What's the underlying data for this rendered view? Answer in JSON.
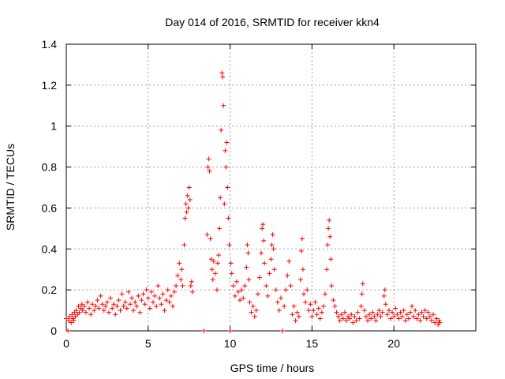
{
  "chart_data": {
    "type": "scatter",
    "title": "Day 014 of 2016, SRMTID for receiver kkn4",
    "xlabel": "GPS time / hours",
    "ylabel": "SRMTID / TECUs",
    "xlim": [
      0,
      25
    ],
    "ylim": [
      0,
      1.4
    ],
    "xticks": [
      0,
      5,
      10,
      15,
      20
    ],
    "xtick_labels": [
      "0",
      "5",
      "10",
      "15",
      "20"
    ],
    "yticks": [
      0,
      0.2,
      0.4,
      0.6,
      0.8,
      1,
      1.2,
      1.4
    ],
    "ytick_labels": [
      "0",
      "0.2",
      "0.4",
      "0.6",
      "0.8",
      "1",
      "1.2",
      "1.4"
    ],
    "grid": true,
    "legend": "none",
    "marker": "plus",
    "series": [
      {
        "name": "kkn4",
        "color": "#ff0000",
        "points": [
          [
            0.0,
            0.06
          ],
          [
            0.1,
            0.0
          ],
          [
            0.15,
            0.05
          ],
          [
            0.2,
            0.07
          ],
          [
            0.3,
            0.04
          ],
          [
            0.35,
            0.08
          ],
          [
            0.4,
            0.06
          ],
          [
            0.45,
            0.05
          ],
          [
            0.5,
            0.09
          ],
          [
            0.55,
            0.07
          ],
          [
            0.6,
            0.1
          ],
          [
            0.7,
            0.08
          ],
          [
            0.75,
            0.12
          ],
          [
            0.8,
            0.09
          ],
          [
            0.9,
            0.11
          ],
          [
            0.95,
            0.13
          ],
          [
            1.0,
            0.1
          ],
          [
            1.1,
            0.12
          ],
          [
            1.2,
            0.09
          ],
          [
            1.3,
            0.14
          ],
          [
            1.4,
            0.11
          ],
          [
            1.5,
            0.08
          ],
          [
            1.6,
            0.13
          ],
          [
            1.7,
            0.1
          ],
          [
            1.8,
            0.12
          ],
          [
            1.9,
            0.15
          ],
          [
            2.0,
            0.11
          ],
          [
            2.1,
            0.17
          ],
          [
            2.2,
            0.13
          ],
          [
            2.3,
            0.1
          ],
          [
            2.4,
            0.12
          ],
          [
            2.5,
            0.14
          ],
          [
            2.6,
            0.09
          ],
          [
            2.7,
            0.16
          ],
          [
            2.8,
            0.11
          ],
          [
            2.9,
            0.13
          ],
          [
            3.0,
            0.08
          ],
          [
            3.1,
            0.12
          ],
          [
            3.2,
            0.15
          ],
          [
            3.3,
            0.1
          ],
          [
            3.4,
            0.18
          ],
          [
            3.5,
            0.12
          ],
          [
            3.6,
            0.14
          ],
          [
            3.7,
            0.11
          ],
          [
            3.8,
            0.19
          ],
          [
            3.9,
            0.13
          ],
          [
            4.0,
            0.16
          ],
          [
            4.1,
            0.1
          ],
          [
            4.2,
            0.14
          ],
          [
            4.3,
            0.12
          ],
          [
            4.4,
            0.17
          ],
          [
            4.5,
            0.09
          ],
          [
            4.6,
            0.15
          ],
          [
            4.7,
            0.18
          ],
          [
            4.8,
            0.13
          ],
          [
            4.9,
            0.2
          ],
          [
            5.0,
            0.16
          ],
          [
            5.1,
            0.11
          ],
          [
            5.2,
            0.19
          ],
          [
            5.3,
            0.14
          ],
          [
            5.4,
            0.17
          ],
          [
            5.5,
            0.12
          ],
          [
            5.6,
            0.22
          ],
          [
            5.7,
            0.16
          ],
          [
            5.8,
            0.13
          ],
          [
            5.9,
            0.18
          ],
          [
            6.0,
            0.1
          ],
          [
            6.1,
            0.15
          ],
          [
            6.2,
            0.2
          ],
          [
            6.3,
            0.14
          ],
          [
            6.4,
            0.17
          ],
          [
            6.5,
            0.12
          ],
          [
            6.6,
            0.19
          ],
          [
            6.7,
            0.22
          ],
          [
            6.8,
            0.27
          ],
          [
            6.9,
            0.33
          ],
          [
            7.0,
            0.25
          ],
          [
            7.05,
            0.3
          ],
          [
            7.1,
            0.22
          ],
          [
            7.2,
            0.42
          ],
          [
            7.25,
            0.55
          ],
          [
            7.3,
            0.62
          ],
          [
            7.35,
            0.58
          ],
          [
            7.4,
            0.66
          ],
          [
            7.45,
            0.6
          ],
          [
            7.5,
            0.7
          ],
          [
            7.55,
            0.64
          ],
          [
            7.6,
            0.22
          ],
          [
            7.65,
            0.24
          ],
          [
            7.7,
            0.19
          ],
          [
            8.4,
            0.0
          ],
          [
            8.6,
            0.47
          ],
          [
            8.65,
            0.8
          ],
          [
            8.7,
            0.84
          ],
          [
            8.75,
            0.78
          ],
          [
            8.8,
            0.45
          ],
          [
            8.85,
            0.35
          ],
          [
            8.9,
            0.3
          ],
          [
            8.95,
            0.25
          ],
          [
            9.0,
            0.34
          ],
          [
            9.1,
            0.28
          ],
          [
            9.2,
            0.2
          ],
          [
            9.25,
            0.33
          ],
          [
            9.3,
            0.37
          ],
          [
            9.35,
            0.5
          ],
          [
            9.4,
            0.65
          ],
          [
            9.45,
            0.98
          ],
          [
            9.5,
            1.26
          ],
          [
            9.55,
            1.24
          ],
          [
            9.6,
            1.1
          ],
          [
            9.65,
            0.62
          ],
          [
            9.7,
            0.88
          ],
          [
            9.75,
            0.8
          ],
          [
            9.8,
            0.92
          ],
          [
            9.85,
            0.7
          ],
          [
            9.9,
            0.55
          ],
          [
            9.95,
            0.42
          ],
          [
            10.0,
            0.0
          ],
          [
            10.05,
            0.33
          ],
          [
            10.1,
            0.28
          ],
          [
            10.2,
            0.22
          ],
          [
            10.3,
            0.17
          ],
          [
            10.4,
            0.24
          ],
          [
            10.5,
            0.19
          ],
          [
            10.6,
            0.15
          ],
          [
            10.7,
            0.2
          ],
          [
            10.8,
            0.16
          ],
          [
            10.9,
            0.22
          ],
          [
            11.0,
            0.31
          ],
          [
            11.05,
            0.42
          ],
          [
            11.1,
            0.38
          ],
          [
            11.15,
            0.25
          ],
          [
            11.2,
            0.14
          ],
          [
            11.3,
            0.09
          ],
          [
            11.4,
            0.12
          ],
          [
            11.5,
            0.07
          ],
          [
            11.6,
            0.1
          ],
          [
            11.7,
            0.18
          ],
          [
            11.8,
            0.26
          ],
          [
            11.9,
            0.38
          ],
          [
            11.95,
            0.5
          ],
          [
            12.0,
            0.52
          ],
          [
            12.05,
            0.44
          ],
          [
            12.1,
            0.33
          ],
          [
            12.2,
            0.22
          ],
          [
            12.3,
            0.17
          ],
          [
            12.4,
            0.28
          ],
          [
            12.5,
            0.35
          ],
          [
            12.55,
            0.42
          ],
          [
            12.6,
            0.47
          ],
          [
            12.65,
            0.4
          ],
          [
            12.7,
            0.3
          ],
          [
            12.8,
            0.2
          ],
          [
            12.9,
            0.14
          ],
          [
            13.0,
            0.1
          ],
          [
            13.1,
            0.16
          ],
          [
            13.2,
            0.0
          ],
          [
            13.3,
            0.12
          ],
          [
            13.4,
            0.2
          ],
          [
            13.5,
            0.27
          ],
          [
            13.6,
            0.34
          ],
          [
            13.7,
            0.22
          ],
          [
            13.8,
            0.08
          ],
          [
            13.9,
            0.12
          ],
          [
            14.0,
            0.05
          ],
          [
            14.1,
            0.09
          ],
          [
            14.2,
            0.07
          ],
          [
            14.3,
            0.25
          ],
          [
            14.35,
            0.39
          ],
          [
            14.4,
            0.45
          ],
          [
            14.45,
            0.3
          ],
          [
            14.5,
            0.18
          ],
          [
            14.6,
            0.14
          ],
          [
            14.7,
            0.2
          ],
          [
            14.8,
            0.1
          ],
          [
            14.9,
            0.13
          ],
          [
            15.0,
            0.07
          ],
          [
            15.1,
            0.1
          ],
          [
            15.2,
            0.14
          ],
          [
            15.3,
            0.08
          ],
          [
            15.4,
            0.11
          ],
          [
            15.5,
            0.06
          ],
          [
            15.6,
            0.09
          ],
          [
            15.7,
            0.12
          ],
          [
            15.8,
            0.18
          ],
          [
            15.9,
            0.3
          ],
          [
            15.95,
            0.42
          ],
          [
            16.0,
            0.5
          ],
          [
            16.05,
            0.54
          ],
          [
            16.1,
            0.46
          ],
          [
            16.15,
            0.35
          ],
          [
            16.2,
            0.22
          ],
          [
            16.3,
            0.15
          ],
          [
            16.4,
            0.12
          ],
          [
            16.5,
            0.09
          ],
          [
            16.6,
            0.07
          ],
          [
            16.7,
            0.05
          ],
          [
            16.8,
            0.08
          ],
          [
            16.9,
            0.06
          ],
          [
            17.0,
            0.09
          ],
          [
            17.1,
            0.05
          ],
          [
            17.2,
            0.07
          ],
          [
            17.3,
            0.06
          ],
          [
            17.4,
            0.08
          ],
          [
            17.5,
            0.04
          ],
          [
            17.6,
            0.07
          ],
          [
            17.7,
            0.05
          ],
          [
            17.8,
            0.09
          ],
          [
            17.9,
            0.06
          ],
          [
            18.0,
            0.12
          ],
          [
            18.05,
            0.18
          ],
          [
            18.1,
            0.23
          ],
          [
            18.2,
            0.1
          ],
          [
            18.3,
            0.07
          ],
          [
            18.4,
            0.05
          ],
          [
            18.5,
            0.08
          ],
          [
            18.6,
            0.06
          ],
          [
            18.7,
            0.09
          ],
          [
            18.8,
            0.07
          ],
          [
            18.9,
            0.05
          ],
          [
            19.0,
            0.08
          ],
          [
            19.1,
            0.1
          ],
          [
            19.2,
            0.07
          ],
          [
            19.3,
            0.09
          ],
          [
            19.4,
            0.17
          ],
          [
            19.45,
            0.2
          ],
          [
            19.5,
            0.13
          ],
          [
            19.6,
            0.08
          ],
          [
            19.7,
            0.1
          ],
          [
            19.8,
            0.06
          ],
          [
            19.9,
            0.09
          ],
          [
            20.0,
            0.07
          ],
          [
            20.1,
            0.11
          ],
          [
            20.2,
            0.08
          ],
          [
            20.3,
            0.06
          ],
          [
            20.4,
            0.09
          ],
          [
            20.5,
            0.07
          ],
          [
            20.6,
            0.1
          ],
          [
            20.7,
            0.05
          ],
          [
            20.8,
            0.08
          ],
          [
            20.9,
            0.06
          ],
          [
            21.0,
            0.09
          ],
          [
            21.1,
            0.12
          ],
          [
            21.2,
            0.07
          ],
          [
            21.3,
            0.1
          ],
          [
            21.4,
            0.06
          ],
          [
            21.5,
            0.08
          ],
          [
            21.6,
            0.05
          ],
          [
            21.7,
            0.09
          ],
          [
            21.8,
            0.07
          ],
          [
            21.9,
            0.1
          ],
          [
            22.0,
            0.06
          ],
          [
            22.1,
            0.09
          ],
          [
            22.2,
            0.07
          ],
          [
            22.3,
            0.05
          ],
          [
            22.4,
            0.08
          ],
          [
            22.5,
            0.04
          ],
          [
            22.6,
            0.06
          ],
          [
            22.7,
            0.03
          ],
          [
            22.75,
            0.05
          ],
          [
            22.8,
            0.04
          ]
        ]
      }
    ]
  }
}
